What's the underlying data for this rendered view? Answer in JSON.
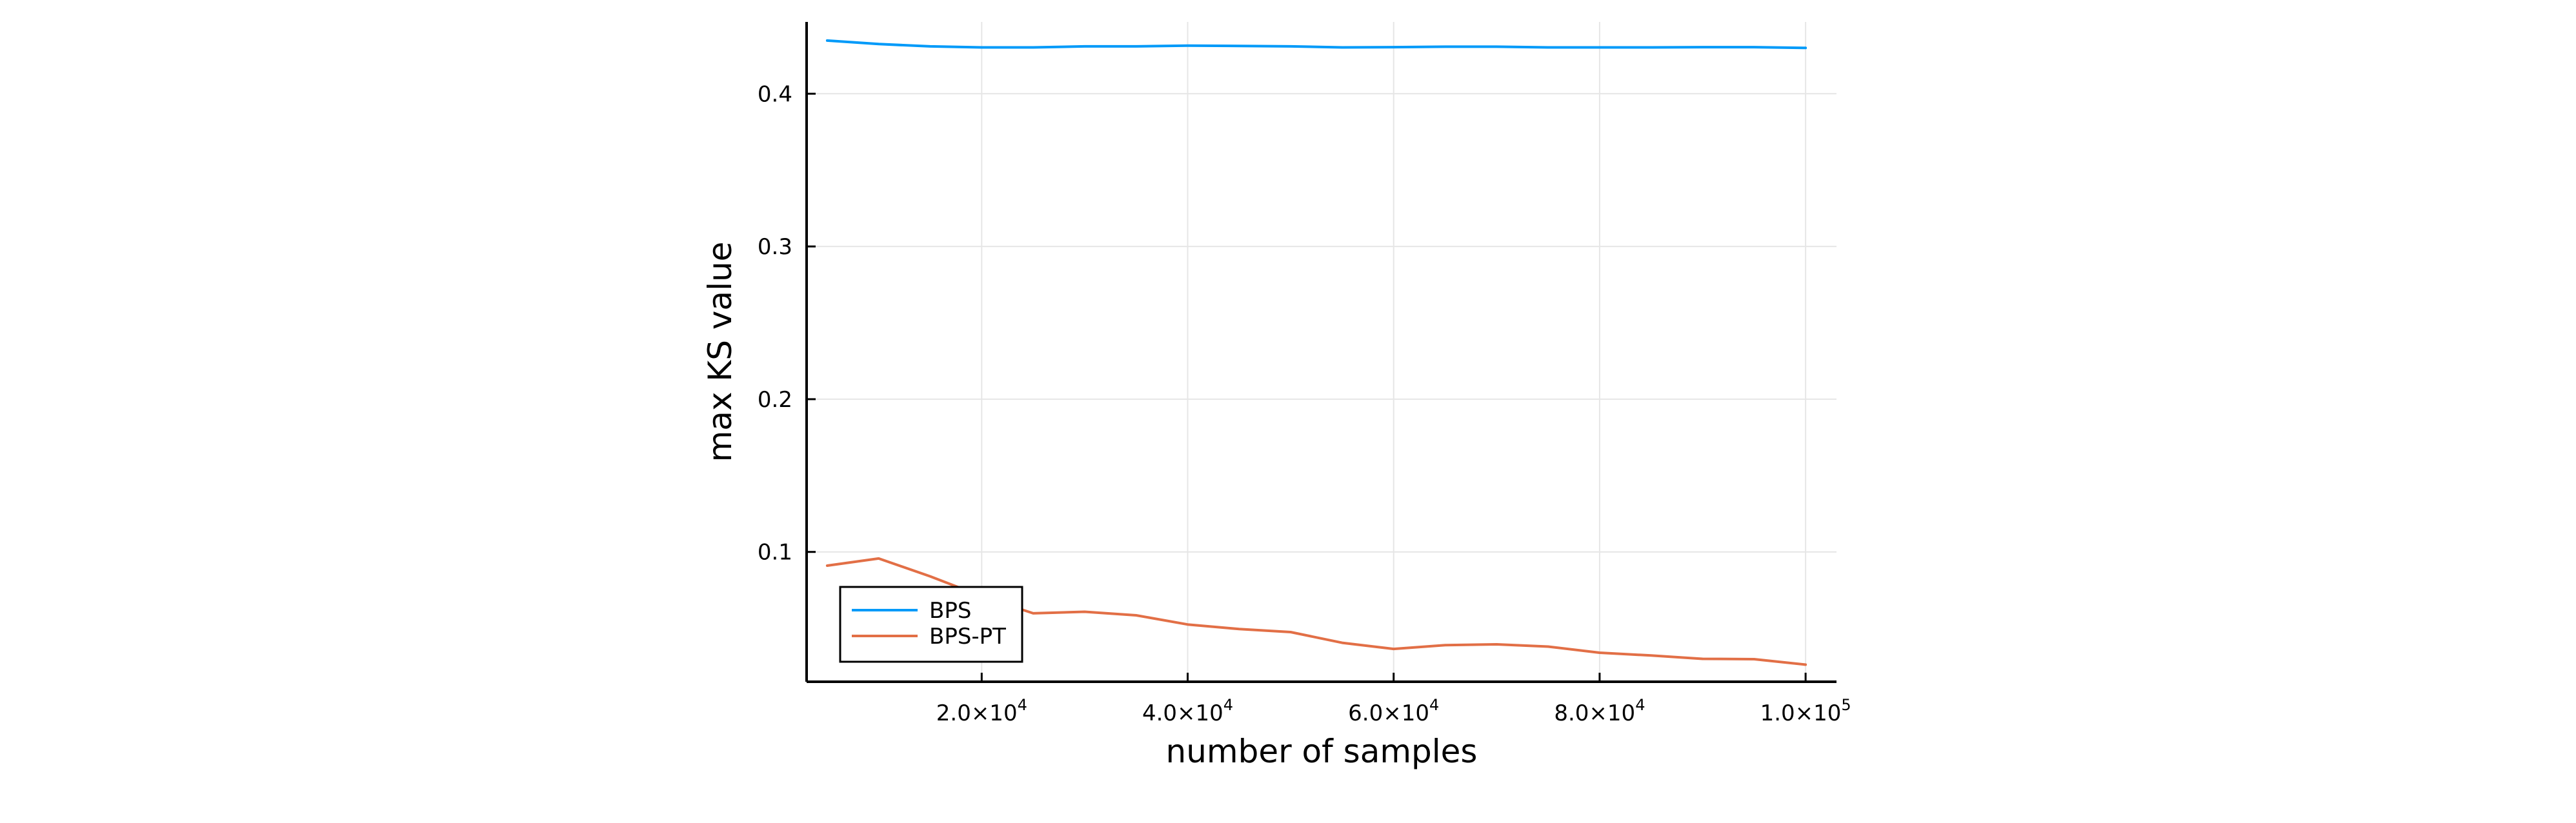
{
  "chart_data": {
    "type": "line",
    "title": "",
    "xlabel": "number of samples",
    "ylabel": "max KS value",
    "xlim": [
      3000,
      103000
    ],
    "ylim": [
      0.015,
      0.447
    ],
    "x_ticks": [
      {
        "value": 20000,
        "mantissa": "2.0×10",
        "exp": "4"
      },
      {
        "value": 40000,
        "mantissa": "4.0×10",
        "exp": "4"
      },
      {
        "value": 60000,
        "mantissa": "6.0×10",
        "exp": "4"
      },
      {
        "value": 80000,
        "mantissa": "8.0×10",
        "exp": "4"
      },
      {
        "value": 100000,
        "mantissa": "1.0×10",
        "exp": "5"
      }
    ],
    "y_ticks": [
      {
        "value": 0.1,
        "label": "0.1"
      },
      {
        "value": 0.2,
        "label": "0.2"
      },
      {
        "value": 0.3,
        "label": "0.3"
      },
      {
        "value": 0.4,
        "label": "0.4"
      }
    ],
    "grid": true,
    "legend_position": "bottom-left",
    "x": [
      5000,
      10000,
      15000,
      20000,
      25000,
      30000,
      35000,
      40000,
      45000,
      50000,
      55000,
      60000,
      65000,
      70000,
      75000,
      80000,
      85000,
      90000,
      95000,
      100000
    ],
    "series": [
      {
        "name": "BPS",
        "color": "#009af9",
        "values": [
          0.4348,
          0.4325,
          0.431,
          0.4303,
          0.4303,
          0.431,
          0.431,
          0.4315,
          0.4313,
          0.431,
          0.4303,
          0.4305,
          0.4308,
          0.4308,
          0.4303,
          0.4303,
          0.4303,
          0.4305,
          0.4305,
          0.43
        ]
      },
      {
        "name": "BPS-PT",
        "color": "#e26f46",
        "values": [
          0.091,
          0.0957,
          0.084,
          0.071,
          0.0598,
          0.0608,
          0.0585,
          0.0525,
          0.0495,
          0.0475,
          0.0405,
          0.0365,
          0.039,
          0.0395,
          0.038,
          0.034,
          0.0322,
          0.03,
          0.0298,
          0.0262
        ]
      }
    ]
  }
}
